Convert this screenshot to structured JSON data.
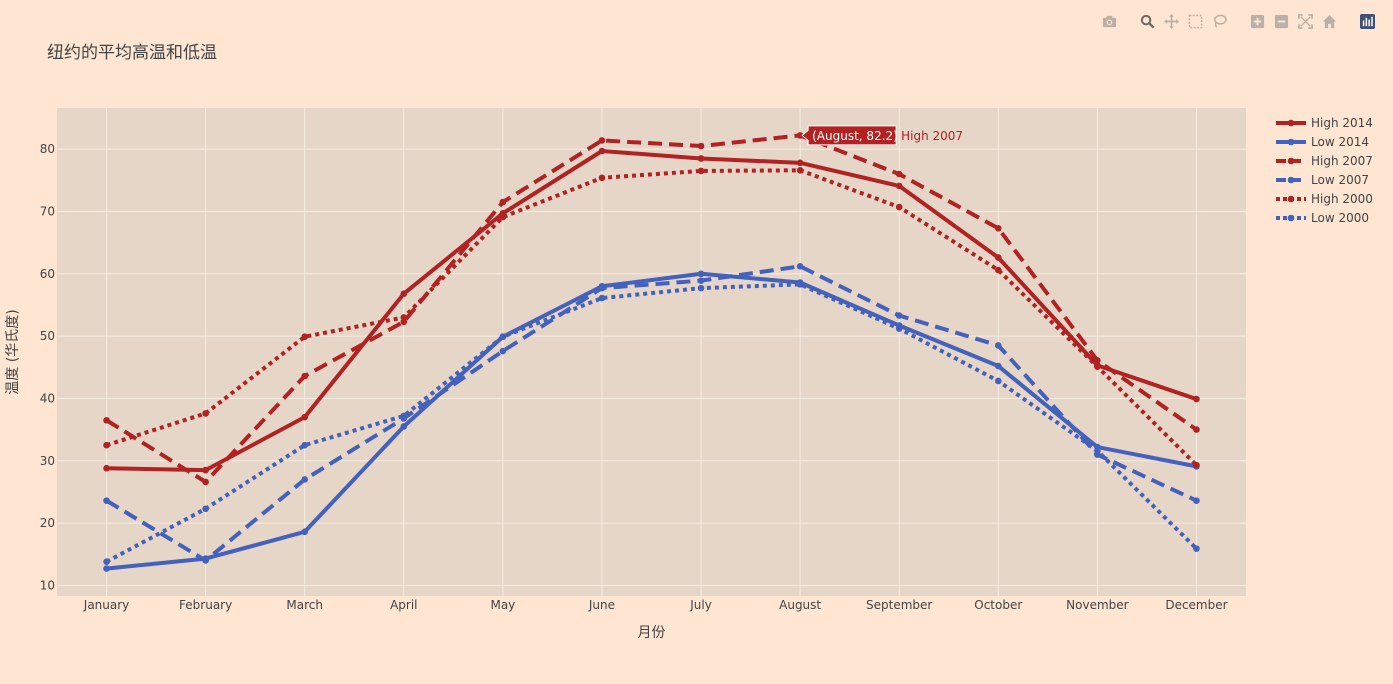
{
  "colors": {
    "paper_bg": "#fee6d2",
    "plot_bg": "#e6d6c8",
    "high": "#b22222",
    "low": "#4361bd",
    "grid": "#f6ece2",
    "modebar_icon": "#b9b0a8",
    "modebar_active": "#6e6a66"
  },
  "modebar": {
    "icons": [
      "camera-icon",
      "zoom-icon",
      "pan-icon",
      "box-select-icon",
      "lasso-select-icon",
      "zoom-in-icon",
      "zoom-out-icon",
      "autoscale-icon",
      "reset-axes-icon",
      "plotly-logo-icon"
    ]
  },
  "hover": {
    "label": "(August, 82.2)",
    "series": "High 2007"
  },
  "chart_data": {
    "type": "line",
    "title": "纽约的平均高温和低温",
    "xlabel": "月份",
    "ylabel": "温度 (华氏度)",
    "categories": [
      "January",
      "February",
      "March",
      "April",
      "May",
      "June",
      "July",
      "August",
      "September",
      "October",
      "November",
      "December"
    ],
    "yticks": [
      10,
      20,
      30,
      40,
      50,
      60,
      70,
      80
    ],
    "ylim": [
      8.3,
      86.6
    ],
    "grid": true,
    "legend_position": "top-right",
    "series": [
      {
        "name": "High 2014",
        "color": "high",
        "dash": "solid",
        "values": [
          28.8,
          28.5,
          37.0,
          56.8,
          69.7,
          79.7,
          78.5,
          77.8,
          74.1,
          62.6,
          45.3,
          39.9
        ]
      },
      {
        "name": "Low 2014",
        "color": "low",
        "dash": "solid",
        "values": [
          12.7,
          14.3,
          18.6,
          35.5,
          49.9,
          58.0,
          60.0,
          58.6,
          51.7,
          45.2,
          32.2,
          29.1
        ]
      },
      {
        "name": "High 2007",
        "color": "high",
        "dash": "dash",
        "values": [
          36.5,
          26.6,
          43.6,
          52.3,
          71.5,
          81.4,
          80.5,
          82.2,
          76.0,
          67.3,
          46.1,
          35.0
        ]
      },
      {
        "name": "Low 2007",
        "color": "low",
        "dash": "dash",
        "values": [
          23.6,
          14.0,
          27.0,
          36.8,
          47.6,
          57.7,
          58.9,
          61.2,
          53.3,
          48.5,
          31.0,
          23.6
        ]
      },
      {
        "name": "High 2000",
        "color": "high",
        "dash": "dot",
        "values": [
          32.5,
          37.6,
          49.9,
          53.0,
          69.1,
          75.4,
          76.5,
          76.6,
          70.7,
          60.6,
          45.1,
          29.3
        ]
      },
      {
        "name": "Low 2000",
        "color": "low",
        "dash": "dot",
        "values": [
          13.8,
          22.3,
          32.5,
          37.2,
          49.9,
          56.1,
          57.7,
          58.3,
          51.2,
          42.8,
          31.6,
          15.9
        ]
      }
    ]
  }
}
